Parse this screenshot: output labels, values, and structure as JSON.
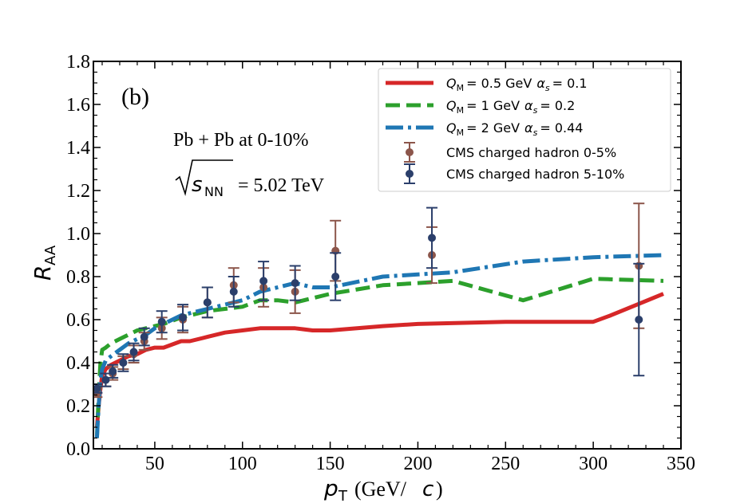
{
  "chart_data": {
    "type": "line",
    "panel_label": "(b)",
    "system_label": "Pb + Pb at 0-10%",
    "energy_label": "= 5.02 TeV",
    "energy_symbol": "s",
    "energy_subscript": "NN",
    "xlabel": "(GeV/",
    "xlabel_symbol": "p",
    "xlabel_sub": "T",
    "xlabel_unit": "c",
    "xlabel_close": ")",
    "ylabel_symbol": "R",
    "ylabel_sub": "AA",
    "xlim": [
      15,
      350
    ],
    "ylim": [
      0,
      1.8
    ],
    "x_ticks": [
      50,
      100,
      150,
      200,
      250,
      300,
      350
    ],
    "y_ticks": [
      0.0,
      0.2,
      0.4,
      0.6,
      0.8,
      1.0,
      1.2,
      1.4,
      1.6,
      1.8
    ],
    "x_tick_labels": [
      "50",
      "100",
      "150",
      "200",
      "250",
      "300",
      "350"
    ],
    "y_tick_labels": [
      "0.0",
      "0.2",
      "0.4",
      "0.6",
      "0.8",
      "1.0",
      "1.2",
      "1.4",
      "1.6",
      "1.8"
    ],
    "legend": {
      "entries": [
        {
          "q": "= 0.5 GeV",
          "alpha": "= 0.1"
        },
        {
          "q": "= 1 GeV",
          "alpha": "= 0.2"
        },
        {
          "q": "= 2 GeV",
          "alpha": "= 0.44"
        },
        {
          "text": "CMS charged hadron 0-5%"
        },
        {
          "text": "CMS charged hadron 5-10%"
        }
      ],
      "q_symbol": "Q",
      "q_sub": "M",
      "alpha_symbol": "α",
      "alpha_sub": "s"
    },
    "series": [
      {
        "name": "Q_M = 0.5 GeV alpha_s = 0.1",
        "color": "#d62728",
        "style": "solid",
        "x": [
          17,
          18,
          19,
          20,
          22,
          25,
          30,
          35,
          40,
          45,
          50,
          55,
          65,
          70,
          80,
          90,
          100,
          110,
          120,
          130,
          140,
          150,
          180,
          200,
          250,
          260,
          280,
          300,
          310,
          340
        ],
        "y": [
          0.1,
          0.2,
          0.28,
          0.34,
          0.37,
          0.39,
          0.41,
          0.43,
          0.44,
          0.46,
          0.47,
          0.47,
          0.5,
          0.5,
          0.52,
          0.54,
          0.55,
          0.56,
          0.56,
          0.56,
          0.55,
          0.55,
          0.57,
          0.58,
          0.59,
          0.59,
          0.59,
          0.59,
          0.62,
          0.72
        ]
      },
      {
        "name": "Q_M = 1 GeV alpha_s = 0.2",
        "color": "#2ca02c",
        "style": "dashed",
        "x": [
          17,
          18,
          19,
          20,
          22,
          25,
          30,
          35,
          40,
          45,
          50,
          55,
          65,
          70,
          80,
          90,
          100,
          110,
          120,
          130,
          140,
          150,
          180,
          200,
          220,
          260,
          300,
          340
        ],
        "y": [
          0.05,
          0.25,
          0.4,
          0.46,
          0.47,
          0.49,
          0.51,
          0.53,
          0.55,
          0.56,
          0.57,
          0.58,
          0.61,
          0.62,
          0.64,
          0.65,
          0.66,
          0.69,
          0.69,
          0.68,
          0.7,
          0.72,
          0.76,
          0.77,
          0.78,
          0.69,
          0.79,
          0.78
        ]
      },
      {
        "name": "Q_M = 2 GeV alpha_s = 0.44",
        "color": "#1f77b4",
        "style": "dashdot",
        "x": [
          17,
          18,
          19,
          20,
          22,
          25,
          30,
          35,
          40,
          45,
          50,
          55,
          65,
          70,
          80,
          90,
          100,
          110,
          120,
          130,
          140,
          150,
          180,
          200,
          220,
          260,
          300,
          340
        ],
        "y": [
          0.05,
          0.2,
          0.32,
          0.37,
          0.41,
          0.43,
          0.46,
          0.49,
          0.51,
          0.53,
          0.56,
          0.58,
          0.62,
          0.63,
          0.65,
          0.67,
          0.69,
          0.73,
          0.75,
          0.77,
          0.75,
          0.75,
          0.8,
          0.81,
          0.82,
          0.87,
          0.89,
          0.9
        ]
      }
    ],
    "data_series": [
      {
        "name": "CMS charged hadron 0-5%",
        "color": "#8c564b",
        "points": [
          {
            "x": 17,
            "y": 0.26,
            "err": 0.02
          },
          {
            "x": 22,
            "y": 0.32,
            "err": 0.03
          },
          {
            "x": 26,
            "y": 0.35,
            "err": 0.03
          },
          {
            "x": 32,
            "y": 0.4,
            "err": 0.03
          },
          {
            "x": 38,
            "y": 0.44,
            "err": 0.04
          },
          {
            "x": 44,
            "y": 0.5,
            "err": 0.04
          },
          {
            "x": 54,
            "y": 0.56,
            "err": 0.05
          },
          {
            "x": 66,
            "y": 0.6,
            "err": 0.06
          },
          {
            "x": 80,
            "y": 0.68,
            "err": 0.07
          },
          {
            "x": 95,
            "y": 0.76,
            "err": 0.08
          },
          {
            "x": 112,
            "y": 0.75,
            "err": 0.09
          },
          {
            "x": 130,
            "y": 0.73,
            "err": 0.1
          },
          {
            "x": 153,
            "y": 0.92,
            "err": 0.14
          },
          {
            "x": 208,
            "y": 0.9,
            "err": 0.13
          },
          {
            "x": 326,
            "y": 0.85,
            "err": 0.29
          }
        ]
      },
      {
        "name": "CMS charged hadron 5-10%",
        "color": "#2b3f6b",
        "points": [
          {
            "x": 17,
            "y": 0.28,
            "err": 0.02
          },
          {
            "x": 22,
            "y": 0.32,
            "err": 0.03
          },
          {
            "x": 26,
            "y": 0.36,
            "err": 0.03
          },
          {
            "x": 32,
            "y": 0.4,
            "err": 0.04
          },
          {
            "x": 38,
            "y": 0.45,
            "err": 0.04
          },
          {
            "x": 44,
            "y": 0.52,
            "err": 0.04
          },
          {
            "x": 54,
            "y": 0.59,
            "err": 0.05
          },
          {
            "x": 66,
            "y": 0.61,
            "err": 0.06
          },
          {
            "x": 80,
            "y": 0.68,
            "err": 0.07
          },
          {
            "x": 95,
            "y": 0.73,
            "err": 0.07
          },
          {
            "x": 112,
            "y": 0.78,
            "err": 0.09
          },
          {
            "x": 130,
            "y": 0.77,
            "err": 0.08
          },
          {
            "x": 153,
            "y": 0.8,
            "err": 0.11
          },
          {
            "x": 208,
            "y": 0.98,
            "err": 0.14
          },
          {
            "x": 326,
            "y": 0.6,
            "err": 0.26
          }
        ]
      }
    ]
  }
}
